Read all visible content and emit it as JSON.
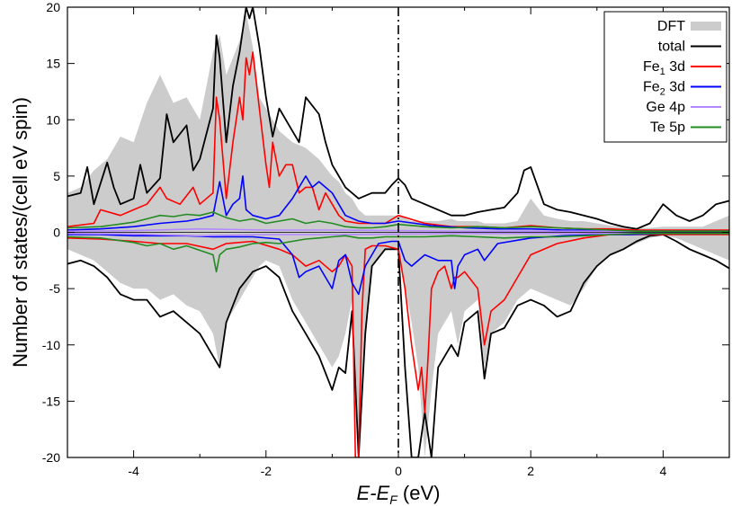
{
  "chart_data": {
    "type": "line",
    "title": "",
    "xlabel": {
      "main": "E-E",
      "sub": "F",
      "unit": " (eV)"
    },
    "ylabel": "Number of states/(cell eV spin)",
    "xlim": [
      -5,
      5
    ],
    "ylim": [
      -20,
      20
    ],
    "x_ticks": [
      -4,
      -2,
      0,
      2,
      4
    ],
    "x_tick_labels": [
      "-4",
      "-2",
      "0",
      "2",
      "4"
    ],
    "y_ticks": [
      -20,
      -15,
      -10,
      -5,
      0,
      5,
      10,
      15,
      20
    ],
    "y_tick_labels": [
      "-20",
      "-15",
      "-10",
      "-5",
      "0",
      "5",
      "10",
      "15",
      "20"
    ],
    "grid": false,
    "legend_position": "top-right",
    "fermi_level_x": 0,
    "series": [
      {
        "name": "DFT",
        "label_parts": [
          "DFT"
        ],
        "style": "band",
        "color": "#cccccc",
        "x": [
          -5,
          -4.8,
          -4.6,
          -4.4,
          -4.2,
          -4.0,
          -3.8,
          -3.6,
          -3.4,
          -3.2,
          -3.0,
          -2.8,
          -2.7,
          -2.6,
          -2.4,
          -2.3,
          -2.2,
          -2.1,
          -2.0,
          -1.8,
          -1.6,
          -1.4,
          -1.2,
          -1.0,
          -0.9,
          -0.8,
          -0.7,
          -0.6,
          -0.5,
          -0.4,
          -0.2,
          0,
          0.2,
          0.3,
          0.4,
          0.5,
          0.6,
          0.8,
          0.9,
          1.0,
          1.2,
          1.3,
          1.4,
          1.6,
          1.8,
          2.0,
          2.2,
          2.4,
          2.6,
          2.8,
          3.0,
          3.2,
          3.4,
          3.6,
          3.8,
          4.0,
          4.2,
          4.4,
          4.6,
          4.8,
          5.0
        ],
        "upper": [
          3.5,
          4.0,
          5.5,
          6.5,
          8.5,
          8.0,
          11.5,
          14.0,
          11.5,
          12.0,
          10.0,
          16.0,
          17.5,
          14.0,
          17.0,
          19.5,
          16.5,
          12.0,
          11.0,
          9.0,
          8.0,
          7.5,
          6.5,
          5.0,
          4.5,
          3.5,
          3.0,
          2.0,
          1.5,
          1.5,
          1.5,
          1.5,
          1.0,
          1.0,
          1.0,
          1.0,
          1.0,
          1.2,
          1.0,
          1.0,
          1.0,
          0.8,
          0.8,
          0.8,
          1.0,
          3.0,
          1.5,
          1.2,
          1.0,
          1.0,
          0.8,
          0.6,
          0.5,
          0.4,
          0.4,
          0.5,
          0.5,
          0.5,
          0.5,
          1.0,
          1.5
        ],
        "lower": [
          -1.5,
          -2.0,
          -2.5,
          -3.5,
          -4.5,
          -5.0,
          -5.0,
          -6.0,
          -5.5,
          -6.5,
          -7.0,
          -9.0,
          -12.0,
          -8.0,
          -6.0,
          -5.0,
          -4.0,
          -3.0,
          -2.5,
          -3.0,
          -6.0,
          -8.0,
          -10.0,
          -12.0,
          -11.0,
          -9.0,
          -6.0,
          -20.0,
          -10.0,
          -3.0,
          -1.5,
          -1.5,
          -8.0,
          -12.0,
          -20.0,
          -14.0,
          -9.0,
          -7.0,
          -10.0,
          -7.0,
          -6.0,
          -12.0,
          -9.0,
          -8.0,
          -6.0,
          -5.0,
          -5.5,
          -6.0,
          -6.5,
          -5.0,
          -3.0,
          -2.0,
          -1.5,
          -1.0,
          -0.5,
          -0.3,
          -0.5,
          -1.0,
          -1.5,
          -2.0,
          -2.5
        ]
      },
      {
        "name": "total",
        "label_parts": [
          "total"
        ],
        "style": "line",
        "color": "#000000",
        "x_up": [
          -5,
          -4.8,
          -4.7,
          -4.6,
          -4.4,
          -4.3,
          -4.2,
          -4.0,
          -3.9,
          -3.8,
          -3.6,
          -3.5,
          -3.4,
          -3.2,
          -3.1,
          -3.0,
          -2.8,
          -2.75,
          -2.7,
          -2.6,
          -2.5,
          -2.4,
          -2.3,
          -2.25,
          -2.2,
          -2.1,
          -2.0,
          -1.9,
          -1.8,
          -1.6,
          -1.5,
          -1.4,
          -1.2,
          -1.1,
          -1.0,
          -0.8,
          -0.6,
          -0.4,
          -0.2,
          -0.1,
          0,
          0.1,
          0.2,
          0.4,
          0.6,
          0.8,
          1.0,
          1.2,
          1.4,
          1.6,
          1.8,
          1.9,
          2.0,
          2.2,
          2.4,
          2.6,
          2.8,
          3.0,
          3.2,
          3.4,
          3.6,
          3.8,
          4.0,
          4.2,
          4.4,
          4.6,
          4.8,
          5.0
        ],
        "y_up": [
          3.2,
          3.5,
          5.8,
          2.5,
          6.2,
          4.0,
          2.5,
          3.0,
          6.0,
          3.5,
          4.8,
          10.5,
          8.0,
          9.5,
          5.5,
          6.5,
          11.0,
          17.5,
          15.5,
          8.0,
          13.0,
          16.0,
          20.0,
          19.0,
          20.0,
          16.5,
          12.0,
          8.5,
          11.0,
          9.0,
          8.0,
          12.0,
          10.5,
          8.0,
          6.0,
          4.0,
          3.0,
          3.5,
          3.5,
          4.2,
          4.8,
          4.2,
          3.0,
          2.5,
          2.0,
          1.5,
          1.5,
          1.8,
          2.0,
          2.2,
          3.5,
          5.5,
          5.8,
          2.5,
          2.0,
          1.8,
          1.5,
          1.2,
          0.8,
          0.5,
          0.3,
          0.8,
          2.5,
          1.5,
          1.0,
          1.5,
          2.5,
          2.8
        ],
        "x_dn": [
          -5,
          -4.8,
          -4.6,
          -4.4,
          -4.2,
          -4.0,
          -3.8,
          -3.6,
          -3.4,
          -3.2,
          -3.0,
          -2.8,
          -2.7,
          -2.6,
          -2.4,
          -2.2,
          -2.0,
          -1.8,
          -1.6,
          -1.4,
          -1.2,
          -1.0,
          -0.9,
          -0.8,
          -0.7,
          -0.6,
          -0.5,
          -0.4,
          -0.2,
          -0.1,
          0,
          0.1,
          0.2,
          0.3,
          0.4,
          0.5,
          0.6,
          0.8,
          0.9,
          1.0,
          1.2,
          1.3,
          1.4,
          1.6,
          1.8,
          2.0,
          2.2,
          2.4,
          2.6,
          2.8,
          3.0,
          3.2,
          3.4,
          3.6,
          3.8,
          4.0,
          4.2,
          4.4,
          4.6,
          4.8,
          5.0
        ],
        "y_dn": [
          -2.8,
          -2.5,
          -3.0,
          -4.0,
          -5.5,
          -6.0,
          -6.0,
          -7.5,
          -7.0,
          -8.0,
          -9.0,
          -11.0,
          -12.0,
          -8.0,
          -5.0,
          -3.5,
          -3.0,
          -4.0,
          -7.0,
          -9.0,
          -11.0,
          -14.0,
          -12.0,
          -12.5,
          -7.0,
          -20.0,
          -9.0,
          -3.0,
          -1.5,
          -1.5,
          -1.5,
          -12.0,
          -20.0,
          -20.0,
          -16.0,
          -20.0,
          -12.0,
          -10.0,
          -11.0,
          -8.0,
          -7.0,
          -13.0,
          -9.0,
          -8.5,
          -6.5,
          -6.0,
          -6.5,
          -7.5,
          -7.0,
          -4.5,
          -3.0,
          -2.0,
          -1.5,
          -0.8,
          -0.3,
          -0.2,
          -0.8,
          -1.5,
          -2.0,
          -2.5,
          -3.2
        ]
      },
      {
        "name": "Fe1 3d",
        "label_parts": [
          "Fe",
          "1",
          " 3d"
        ],
        "style": "line",
        "color": "#ff0000",
        "x_up": [
          -5,
          -4.6,
          -4.5,
          -4.2,
          -4.0,
          -3.8,
          -3.6,
          -3.5,
          -3.3,
          -3.1,
          -3.0,
          -2.8,
          -2.75,
          -2.7,
          -2.6,
          -2.5,
          -2.4,
          -2.35,
          -2.3,
          -2.25,
          -2.2,
          -2.1,
          -2.0,
          -1.95,
          -1.9,
          -1.8,
          -1.7,
          -1.6,
          -1.5,
          -1.4,
          -1.3,
          -1.2,
          -1.1,
          -1.0,
          -0.9,
          -0.8,
          -0.6,
          -0.4,
          -0.2,
          0,
          0.4,
          0.8,
          1.2,
          1.6,
          2.0,
          2.4,
          2.8,
          3.2,
          3.6,
          4.0,
          4.4,
          4.8,
          5.0
        ],
        "y_up": [
          0.5,
          0.8,
          2.0,
          1.5,
          2.0,
          2.5,
          4.0,
          3.0,
          2.5,
          4.0,
          2.5,
          3.5,
          12.0,
          10.0,
          3.0,
          8.0,
          12.0,
          10.0,
          15.5,
          14.0,
          16.0,
          11.0,
          6.0,
          4.0,
          8.0,
          5.0,
          6.0,
          6.0,
          3.5,
          4.0,
          4.0,
          2.0,
          3.5,
          2.5,
          1.5,
          1.0,
          0.8,
          0.8,
          0.8,
          1.5,
          0.8,
          0.5,
          0.5,
          0.4,
          0.6,
          0.4,
          0.3,
          0.3,
          0.2,
          0.2,
          0.2,
          0.2,
          0.2
        ],
        "x_dn": [
          -5,
          -4.5,
          -4.0,
          -3.6,
          -3.2,
          -2.8,
          -2.6,
          -2.2,
          -1.8,
          -1.6,
          -1.4,
          -1.2,
          -1.0,
          -0.9,
          -0.8,
          -0.7,
          -0.65,
          -0.6,
          -0.55,
          -0.5,
          -0.4,
          -0.2,
          0,
          0.1,
          0.2,
          0.3,
          0.35,
          0.4,
          0.45,
          0.5,
          0.6,
          0.7,
          0.8,
          0.85,
          0.9,
          1.0,
          1.2,
          1.3,
          1.4,
          1.6,
          2.0,
          2.4,
          2.8,
          3.2,
          3.6,
          4.0,
          4.4,
          4.8,
          5.0
        ],
        "y_dn": [
          -0.5,
          -0.6,
          -0.8,
          -1.0,
          -1.0,
          -1.5,
          -1.0,
          -0.8,
          -1.5,
          -2.0,
          -3.0,
          -2.5,
          -3.5,
          -3.0,
          -2.0,
          -3.0,
          -20.0,
          -20.0,
          -7.0,
          -1.5,
          -1.2,
          -1.2,
          -1.5,
          -5.0,
          -10.0,
          -14.0,
          -12.0,
          -16.0,
          -11.0,
          -5.0,
          -3.5,
          -3.0,
          -5.0,
          -4.0,
          -4.0,
          -3.5,
          -5.0,
          -10.0,
          -7.0,
          -6.0,
          -2.0,
          -1.0,
          -0.5,
          -0.2,
          -0.2,
          -0.2,
          -0.2,
          -0.2,
          -0.2
        ]
      },
      {
        "name": "Fe2 3d",
        "label_parts": [
          "Fe",
          "2",
          " 3d"
        ],
        "style": "line",
        "color": "#0000ff",
        "x_up": [
          -5,
          -4.5,
          -4.0,
          -3.6,
          -3.2,
          -3.0,
          -2.8,
          -2.7,
          -2.6,
          -2.5,
          -2.4,
          -2.35,
          -2.3,
          -2.2,
          -2.0,
          -1.8,
          -1.6,
          -1.5,
          -1.4,
          -1.3,
          -1.2,
          -1.0,
          -0.8,
          -0.6,
          -0.4,
          -0.2,
          0,
          0.5,
          1.0,
          1.5,
          2.0,
          2.5,
          3.0,
          3.5,
          4.0,
          4.5,
          5.0
        ],
        "y_up": [
          0.2,
          0.3,
          0.5,
          0.8,
          1.0,
          1.2,
          1.5,
          4.5,
          1.5,
          2.5,
          3.0,
          5.0,
          2.0,
          1.5,
          1.2,
          1.5,
          3.0,
          4.0,
          5.0,
          4.0,
          4.5,
          3.5,
          1.5,
          1.0,
          0.8,
          0.8,
          1.0,
          0.6,
          0.4,
          0.3,
          0.3,
          0.2,
          0.2,
          0.1,
          0.1,
          0.1,
          0.1
        ],
        "x_dn": [
          -5,
          -4.5,
          -4.0,
          -3.6,
          -3.2,
          -2.8,
          -2.6,
          -2.2,
          -1.8,
          -1.6,
          -1.5,
          -1.4,
          -1.2,
          -1.0,
          -0.9,
          -0.8,
          -0.7,
          -0.6,
          -0.5,
          -0.3,
          -0.1,
          0,
          0.1,
          0.2,
          0.4,
          0.6,
          0.8,
          0.85,
          0.9,
          1.0,
          1.2,
          1.3,
          1.5,
          2.0,
          2.5,
          3.0,
          3.5,
          4.0,
          4.5,
          5.0
        ],
        "y_dn": [
          -0.2,
          -0.2,
          -0.3,
          -0.3,
          -0.3,
          -0.4,
          -0.4,
          -0.4,
          -0.6,
          -2.0,
          -4.0,
          -3.5,
          -3.0,
          -5.0,
          -2.5,
          -2.0,
          -4.5,
          -5.5,
          -3.0,
          -1.0,
          -0.8,
          -0.8,
          -2.5,
          -3.0,
          -2.0,
          -2.5,
          -2.5,
          -5.0,
          -3.0,
          -2.0,
          -1.5,
          -2.5,
          -1.0,
          -0.5,
          -0.3,
          -0.2,
          -0.2,
          -0.1,
          -0.1,
          -0.1
        ]
      },
      {
        "name": "Ge 4p",
        "label_parts": [
          "Ge 4p"
        ],
        "style": "line",
        "color": "#b388ff",
        "x_up": [
          -5,
          -4.0,
          -3.0,
          -2.0,
          -1.0,
          0,
          1.0,
          2.0,
          3.0,
          4.0,
          5.0
        ],
        "y_up": [
          0.1,
          0.15,
          0.3,
          0.2,
          0.2,
          0.15,
          0.1,
          0.1,
          0.1,
          0.05,
          0.05
        ],
        "x_dn": [
          -5,
          -4.0,
          -3.0,
          -2.0,
          -1.0,
          0,
          1.0,
          2.0,
          3.0,
          4.0,
          5.0
        ],
        "y_dn": [
          -0.1,
          -0.15,
          -0.3,
          -0.2,
          -0.2,
          -0.15,
          -0.1,
          -0.1,
          -0.1,
          -0.05,
          -0.05
        ]
      },
      {
        "name": "Te 5p",
        "label_parts": [
          "Te 5p"
        ],
        "style": "line",
        "color": "#228b22",
        "x_up": [
          -5,
          -4.5,
          -4.0,
          -3.8,
          -3.6,
          -3.4,
          -3.2,
          -3.0,
          -2.8,
          -2.6,
          -2.4,
          -2.2,
          -2.0,
          -1.8,
          -1.6,
          -1.4,
          -1.2,
          -1.0,
          -0.8,
          -0.6,
          -0.4,
          -0.2,
          0,
          0.4,
          0.8,
          1.2,
          1.6,
          2.0,
          2.4,
          2.8,
          3.2,
          3.6,
          4.0,
          4.4,
          4.8,
          5.0
        ],
        "y_up": [
          0.4,
          0.5,
          0.9,
          1.2,
          1.5,
          1.4,
          1.6,
          1.5,
          1.8,
          1.3,
          1.0,
          1.2,
          0.8,
          1.0,
          1.2,
          0.8,
          1.0,
          0.8,
          0.5,
          0.4,
          0.4,
          0.5,
          0.7,
          0.5,
          0.4,
          0.5,
          0.4,
          0.5,
          0.4,
          0.3,
          0.2,
          0.1,
          0.1,
          0.1,
          0.1,
          0.1
        ],
        "x_dn": [
          -5,
          -4.5,
          -4.0,
          -3.8,
          -3.6,
          -3.4,
          -3.2,
          -3.0,
          -2.8,
          -2.75,
          -2.7,
          -2.6,
          -2.4,
          -2.2,
          -2.0,
          -1.8,
          -1.6,
          -1.4,
          -1.2,
          -1.0,
          -0.8,
          -0.6,
          -0.4,
          -0.2,
          0,
          0.4,
          0.8,
          1.2,
          1.6,
          2.0,
          2.4,
          2.8,
          3.2,
          3.6,
          4.0,
          4.4,
          4.8,
          5.0
        ],
        "y_dn": [
          -0.4,
          -0.5,
          -0.9,
          -1.2,
          -1.0,
          -1.5,
          -1.2,
          -1.6,
          -2.0,
          -3.5,
          -2.0,
          -1.5,
          -1.3,
          -1.0,
          -0.9,
          -1.0,
          -0.8,
          -0.6,
          -0.5,
          -0.4,
          -0.3,
          -0.5,
          -0.5,
          -0.4,
          -0.4,
          -0.4,
          -0.3,
          -0.4,
          -0.5,
          -0.4,
          -0.4,
          -0.3,
          -0.2,
          -0.1,
          -0.1,
          -0.1,
          -0.1,
          -0.1
        ]
      }
    ]
  }
}
